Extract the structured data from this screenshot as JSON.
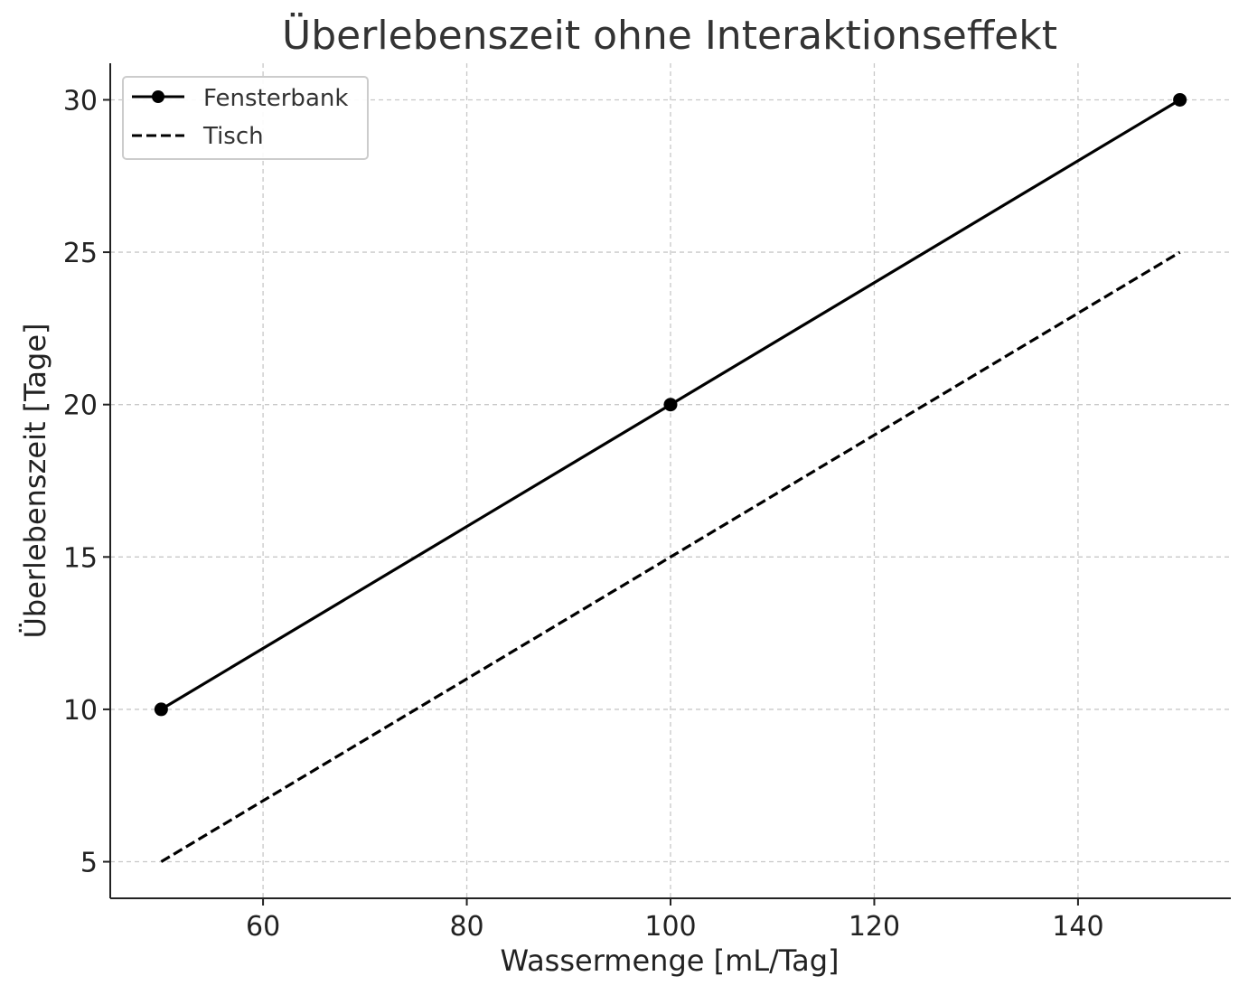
{
  "chart_data": {
    "type": "line",
    "title": "Überlebenszeit ohne Interaktionseffekt",
    "xlabel": "Wassermenge [mL/Tag]",
    "ylabel": "Überlebenszeit [Tage]",
    "xlim": [
      45,
      155
    ],
    "ylim": [
      3.8,
      31.2
    ],
    "xticks": [
      60,
      80,
      100,
      120,
      140
    ],
    "yticks": [
      5,
      10,
      15,
      20,
      25,
      30
    ],
    "grid": true,
    "legend_position": "top-left",
    "series": [
      {
        "name": "Fensterbank",
        "x": [
          50,
          100,
          150
        ],
        "y": [
          10,
          20,
          30
        ],
        "line_style": "solid",
        "marker": "circle",
        "color": "#000000"
      },
      {
        "name": "Tisch",
        "x": [
          50,
          100,
          150
        ],
        "y": [
          5,
          15,
          25
        ],
        "line_style": "dashed",
        "marker": "none",
        "color": "#000000"
      }
    ]
  }
}
